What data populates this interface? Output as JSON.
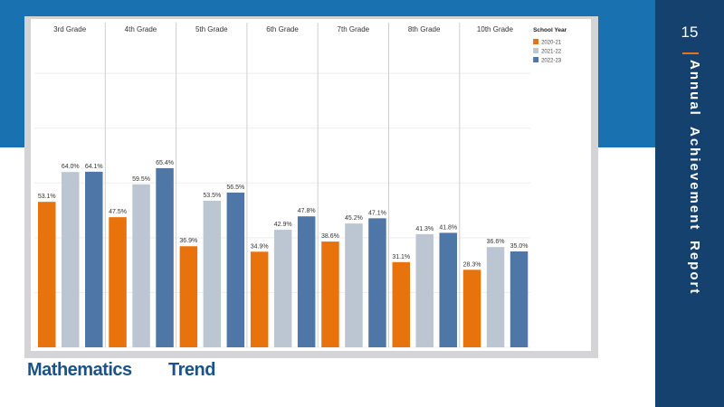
{
  "slide": {
    "page_number": "15",
    "side_title_words": [
      "Annual",
      "Achievement",
      "Report"
    ],
    "caption_words": [
      "Mathematics",
      "Trend"
    ],
    "colors": {
      "top_band": "#1a71b0",
      "sidebar": "#14416e",
      "accent": "#e8731a",
      "caption": "#1b5288"
    }
  },
  "chart_data": {
    "type": "bar",
    "categories": [
      "3rd Grade",
      "4th Grade",
      "5th Grade",
      "6th Grade",
      "7th Grade",
      "8th Grade",
      "10th Grade"
    ],
    "legend_title": "School Year",
    "legend_position": "top-right",
    "series": [
      {
        "name": "2020-21",
        "color": "#e8730c",
        "values": [
          53.1,
          47.5,
          36.9,
          34.9,
          38.6,
          31.1,
          28.3
        ],
        "labels": [
          "53.1%",
          "47.5%",
          "36.9%",
          "34.9%",
          "38.6%",
          "31.1%",
          "28.3%"
        ]
      },
      {
        "name": "2021-22",
        "color": "#bcc6d2",
        "values": [
          64.0,
          59.5,
          53.5,
          42.9,
          45.2,
          41.3,
          36.6
        ],
        "labels": [
          "64.0%",
          "59.5%",
          "53.5%",
          "42.9%",
          "45.2%",
          "41.3%",
          "36.6%"
        ]
      },
      {
        "name": "2022-23",
        "color": "#4e76a6",
        "values": [
          64.1,
          65.4,
          56.5,
          47.8,
          47.1,
          41.8,
          35.0
        ],
        "labels": [
          "64.1%",
          "65.4%",
          "56.5%",
          "47.8%",
          "47.1%",
          "41.8%",
          "35.0%"
        ]
      }
    ],
    "ylim": [
      0,
      105
    ],
    "grid": true,
    "axis_labels_visible": false
  }
}
